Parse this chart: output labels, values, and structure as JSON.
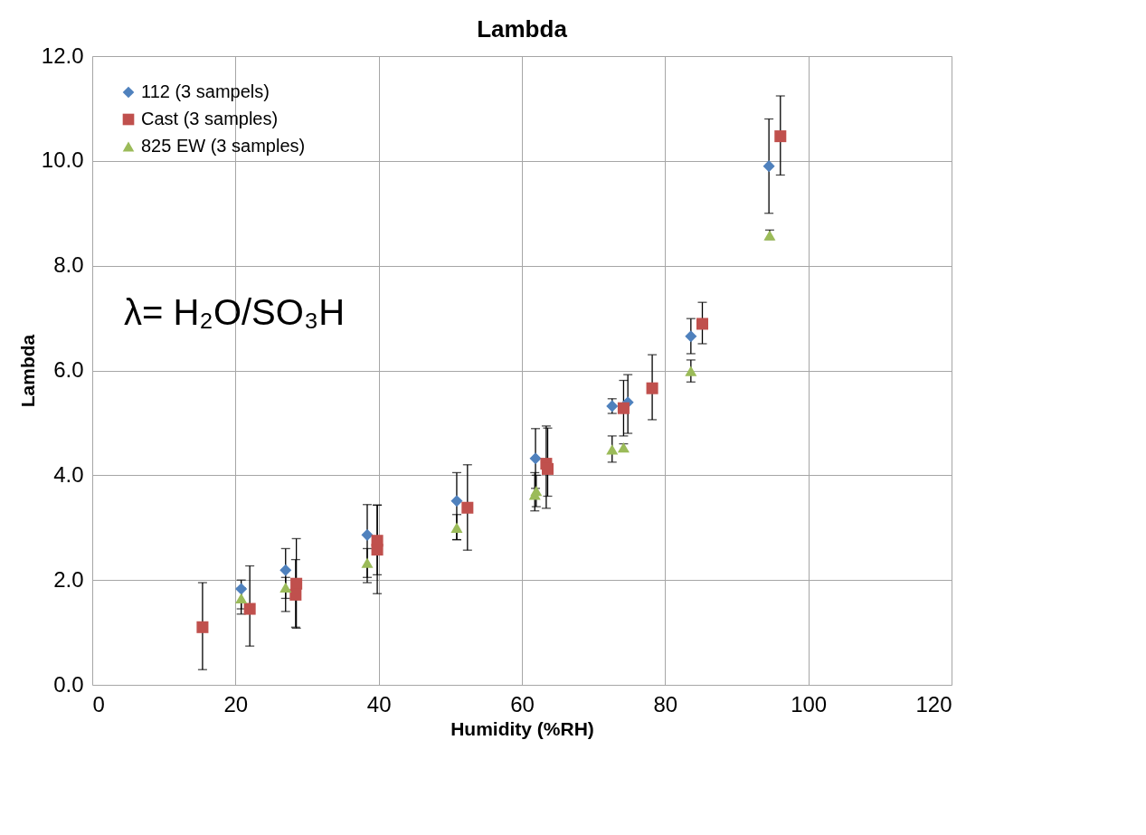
{
  "chart_data": {
    "type": "scatter",
    "title": "Lambda",
    "xlabel": "Humidity (%RH)",
    "ylabel": "Lambda",
    "xlim": [
      0,
      120
    ],
    "xticks": [
      0,
      20,
      40,
      60,
      80,
      100,
      120
    ],
    "ylim": [
      0,
      12
    ],
    "yticks": [
      {
        "value": 0,
        "label": "0.0"
      },
      {
        "value": 2,
        "label": "2.0"
      },
      {
        "value": 4,
        "label": "4.0"
      },
      {
        "value": 6,
        "label": "6.0"
      },
      {
        "value": 8,
        "label": "8.0"
      },
      {
        "value": 10,
        "label": "10.0"
      },
      {
        "value": 12,
        "label": "12.0"
      }
    ],
    "grid": true,
    "legend": "top left",
    "annotations": [
      "λ= H₂O/SO₃H"
    ],
    "series": [
      {
        "name": "112 (3 sampels)",
        "color": "#4f81bd",
        "marker": "diamond",
        "x": [
          20.8,
          27.0,
          38.4,
          50.9,
          61.9,
          72.6,
          74.8,
          83.6,
          94.5
        ],
        "values": [
          1.83,
          2.19,
          2.86,
          3.51,
          4.32,
          5.32,
          5.39,
          6.65,
          9.9
        ],
        "errors": [
          [
            1.35,
            2.0
          ],
          [
            1.4,
            2.6
          ],
          [
            1.95,
            3.44
          ],
          [
            2.77,
            4.05
          ],
          [
            3.75,
            4.89
          ],
          [
            5.18,
            5.46
          ],
          [
            4.8,
            5.92
          ],
          [
            6.32,
            6.99
          ],
          [
            9.0,
            10.8
          ]
        ]
      },
      {
        "name": "Cast (3 samples)",
        "color": "#c0504d",
        "marker": "square",
        "x": [
          15.4,
          22.0,
          28.5,
          28.4,
          39.8,
          39.8,
          52.4,
          63.4,
          63.6,
          74.2,
          78.2,
          85.2,
          96.1
        ],
        "values": [
          1.1,
          1.45,
          1.93,
          1.72,
          2.75,
          2.58,
          3.38,
          4.22,
          4.12,
          5.28,
          5.66,
          6.89,
          10.47
        ],
        "errors": [
          [
            0.29,
            1.95
          ],
          [
            0.74,
            2.27
          ],
          [
            1.08,
            2.79
          ],
          [
            1.1,
            2.39
          ],
          [
            1.74,
            3.43
          ],
          [
            2.1,
            3.43
          ],
          [
            2.57,
            4.2
          ],
          [
            3.37,
            4.94
          ],
          [
            3.6,
            4.9
          ],
          [
            4.75,
            5.81
          ],
          [
            5.06,
            6.3
          ],
          [
            6.51,
            7.3
          ],
          [
            9.73,
            11.24
          ]
        ]
      },
      {
        "name": "825 EW (3 samples)",
        "color": "#9bbb59",
        "marker": "triangle",
        "x": [
          20.8,
          27.0,
          38.4,
          50.9,
          61.8,
          62.0,
          72.6,
          74.2,
          83.6,
          94.6
        ],
        "values": [
          1.65,
          1.86,
          2.33,
          3.0,
          3.63,
          3.7,
          4.49,
          4.53,
          5.99,
          8.58
        ],
        "errors": [
          [
            1.45,
            1.85
          ],
          [
            1.65,
            2.05
          ],
          [
            2.05,
            2.6
          ],
          [
            2.77,
            3.25
          ],
          [
            3.32,
            4.05
          ],
          [
            3.4,
            4.0
          ],
          [
            4.25,
            4.75
          ],
          [
            4.45,
            4.6
          ],
          [
            5.78,
            6.2
          ],
          [
            8.5,
            8.68
          ]
        ]
      }
    ]
  }
}
